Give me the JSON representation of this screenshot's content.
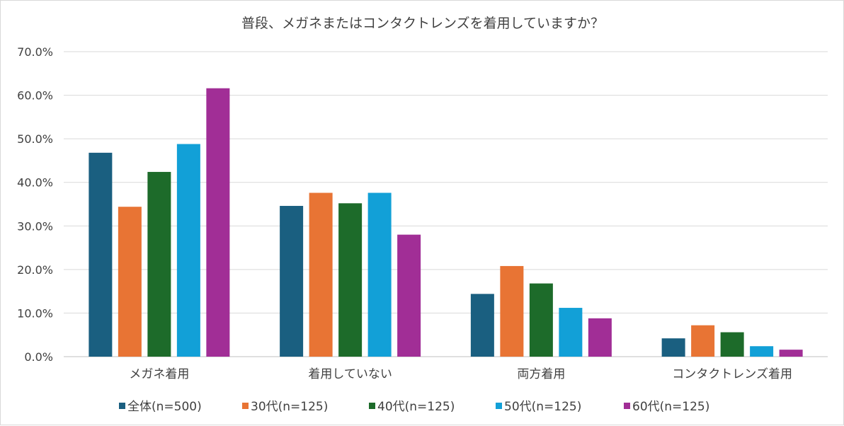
{
  "chart_data": {
    "type": "bar",
    "title": "普段、メガネまたはコンタクトレンズを着用していますか？",
    "categories": [
      "メガネ着用",
      "着用していない",
      "両方着用",
      "コンタクトレンズ着用"
    ],
    "y_ticks": [
      "0.0%",
      "10.0%",
      "20.0%",
      "30.0%",
      "40.0%",
      "50.0%",
      "60.0%",
      "70.0%"
    ],
    "ylim": [
      0,
      70
    ],
    "grid": true,
    "legend_position": "bottom",
    "series": [
      {
        "name": "全体(n=500)",
        "color": "#1a5f80",
        "values": [
          46.8,
          34.6,
          14.4,
          4.2
        ]
      },
      {
        "name": "30代(n=125)",
        "color": "#e87434",
        "values": [
          34.4,
          37.6,
          20.8,
          7.2
        ]
      },
      {
        "name": "40代(n=125)",
        "color": "#1d6b2a",
        "values": [
          42.4,
          35.2,
          16.8,
          5.6
        ]
      },
      {
        "name": "50代(n=125)",
        "color": "#12a0d7",
        "values": [
          48.8,
          37.6,
          11.2,
          2.4
        ]
      },
      {
        "name": "60代(n=125)",
        "color": "#a12e96",
        "values": [
          61.6,
          28.0,
          8.8,
          1.6
        ]
      }
    ]
  }
}
